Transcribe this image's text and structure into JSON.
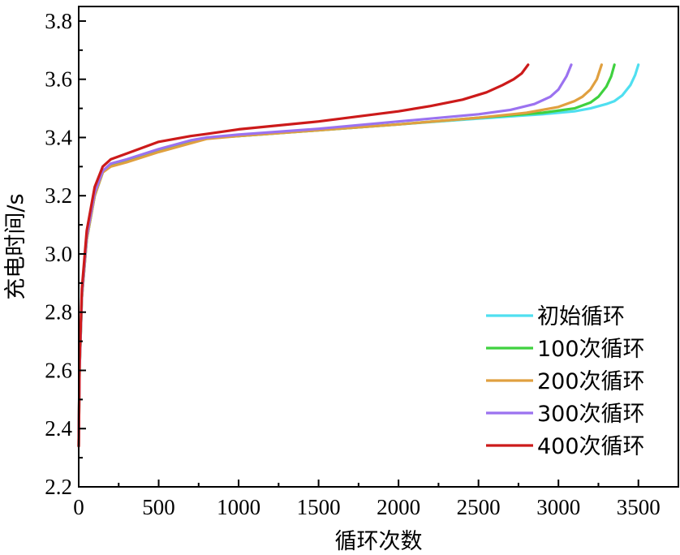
{
  "chart_data": {
    "type": "line",
    "xlabel": "循环次数",
    "ylabel": "充电时间/s",
    "xlim": [
      0,
      3750
    ],
    "ylim": [
      2.2,
      3.85
    ],
    "xticks": [
      0,
      500,
      1000,
      1500,
      2000,
      2500,
      3000,
      3500
    ],
    "yticks": [
      2.2,
      2.4,
      2.6,
      2.8,
      3.0,
      3.2,
      3.4,
      3.6,
      3.8
    ],
    "xtick_labels": [
      "0",
      "500",
      "1000",
      "1500",
      "2000",
      "2500",
      "3000",
      "3500"
    ],
    "ytick_labels": [
      "2.2",
      "2.4",
      "2.6",
      "2.8",
      "3.0",
      "3.2",
      "3.4",
      "3.6",
      "3.8"
    ],
    "grid": false,
    "legend_position": "bottom-right",
    "series": [
      {
        "name": "初始循环",
        "color": "#4fdff0",
        "x": [
          0,
          5,
          20,
          50,
          100,
          150,
          200,
          300,
          500,
          700,
          800,
          1000,
          1500,
          2000,
          2500,
          2900,
          3100,
          3200,
          3300,
          3350,
          3400,
          3450,
          3480,
          3500
        ],
        "y": [
          2.34,
          2.6,
          2.85,
          3.05,
          3.2,
          3.28,
          3.305,
          3.32,
          3.355,
          3.385,
          3.398,
          3.405,
          3.425,
          3.445,
          3.465,
          3.48,
          3.49,
          3.5,
          3.515,
          3.525,
          3.545,
          3.58,
          3.615,
          3.65
        ]
      },
      {
        "name": "100次循环",
        "color": "#3fd13f",
        "x": [
          0,
          5,
          20,
          50,
          100,
          150,
          200,
          300,
          500,
          700,
          800,
          1000,
          1500,
          2000,
          2500,
          2900,
          3100,
          3200,
          3250,
          3300,
          3330,
          3350
        ],
        "y": [
          2.34,
          2.6,
          2.85,
          3.05,
          3.2,
          3.28,
          3.305,
          3.32,
          3.355,
          3.385,
          3.398,
          3.405,
          3.425,
          3.445,
          3.468,
          3.485,
          3.5,
          3.52,
          3.54,
          3.575,
          3.61,
          3.65
        ]
      },
      {
        "name": "200次循环",
        "color": "#e0a040",
        "x": [
          0,
          5,
          20,
          50,
          100,
          150,
          200,
          300,
          500,
          700,
          800,
          1000,
          1500,
          2000,
          2500,
          2800,
          3000,
          3100,
          3150,
          3200,
          3240,
          3270
        ],
        "y": [
          2.34,
          2.6,
          2.85,
          3.05,
          3.2,
          3.28,
          3.3,
          3.315,
          3.35,
          3.38,
          3.395,
          3.405,
          3.425,
          3.445,
          3.468,
          3.485,
          3.505,
          3.525,
          3.54,
          3.565,
          3.6,
          3.65
        ]
      },
      {
        "name": "300次循环",
        "color": "#9b72f0",
        "x": [
          0,
          5,
          20,
          50,
          100,
          150,
          200,
          300,
          500,
          700,
          800,
          1000,
          1500,
          2000,
          2500,
          2700,
          2850,
          2950,
          3000,
          3050,
          3080
        ],
        "y": [
          2.34,
          2.6,
          2.86,
          3.06,
          3.21,
          3.285,
          3.31,
          3.325,
          3.36,
          3.39,
          3.4,
          3.41,
          3.43,
          3.455,
          3.48,
          3.495,
          3.515,
          3.54,
          3.565,
          3.61,
          3.65
        ]
      },
      {
        "name": "400次循环",
        "color": "#cc1a1a",
        "x": [
          0,
          5,
          20,
          50,
          100,
          150,
          200,
          300,
          500,
          700,
          800,
          1000,
          1500,
          2000,
          2200,
          2400,
          2550,
          2650,
          2720,
          2770,
          2810
        ],
        "y": [
          2.34,
          2.62,
          2.88,
          3.08,
          3.23,
          3.3,
          3.325,
          3.345,
          3.385,
          3.405,
          3.412,
          3.428,
          3.455,
          3.49,
          3.508,
          3.53,
          3.555,
          3.58,
          3.6,
          3.62,
          3.65
        ]
      }
    ]
  }
}
